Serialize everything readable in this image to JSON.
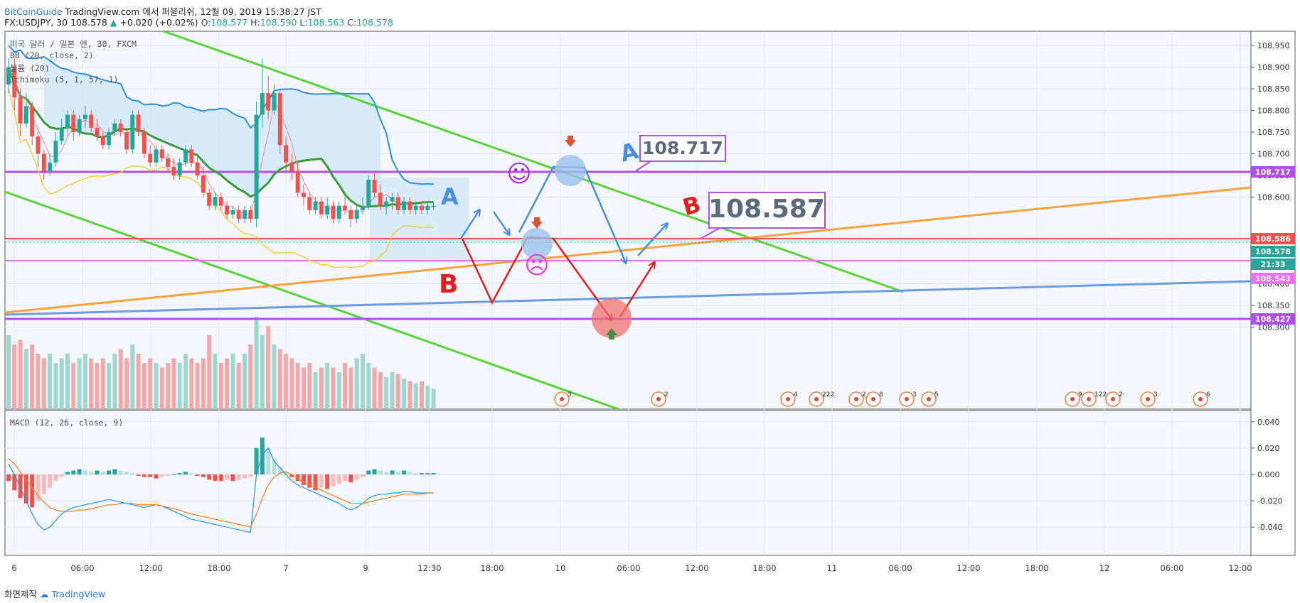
{
  "header": {
    "brand": "BitCoinGuide",
    "source_text": "TradingView.com 에서 퍼블리쉬, 12월 09, 2019 15:38:27 JST",
    "symbol": "FX:USDJPY, 30",
    "price": "108.578",
    "change": "+0.020 (+0.02%)",
    "o_label": "O:",
    "o": "108.577",
    "h_label": "H:",
    "h": "108.590",
    "l_label": "L:",
    "l": "108.563",
    "c_label": "C:",
    "c": "108.578"
  },
  "legend": {
    "title": "미국 달러 / 일본 엔, 30, FXCM",
    "bb": "BB (20, close, 2)",
    "volume": "볼륨 (20)",
    "ichimoku": "Ichimoku (5, 1, 57, 1)",
    "macd": "MACD (12, 26, close, 9)"
  },
  "footer": {
    "text": "화면제작",
    "tv": "TradingView"
  },
  "colors": {
    "up": "#26a69a",
    "down": "#ef5350",
    "channel": "#58d43a",
    "orange_trend": "#f7a23c",
    "blue_trend": "#6b9be0",
    "level_purple": "#b14fe8",
    "level_red": "#f05050",
    "level_pink": "#f06ef0",
    "bb_band": "#2f8fe0",
    "ichimoku_green": "#3d9a3d",
    "scenario_a": "#4a8ee0",
    "scenario_b": "#e02020"
  },
  "chart_data": {
    "type": "candlestick",
    "symbol": "USDJPY",
    "timeframe": "30",
    "y_axis": {
      "ticks": [
        "108.950",
        "108.900",
        "108.850",
        "108.800",
        "108.750",
        "108.700",
        "108.650",
        "108.600",
        "108.500",
        "108.450",
        "108.400",
        "108.350",
        "108.300"
      ],
      "range": [
        108.25,
        109.0
      ]
    },
    "macd_axis": {
      "ticks": [
        "0.040",
        "0.020",
        "0.000",
        "-0.020",
        "-0.040"
      ],
      "range": [
        -0.05,
        0.04
      ]
    },
    "x_axis": {
      "ticks": [
        "6",
        "06:00",
        "12:00",
        "18:00",
        "7",
        "9",
        "12:30",
        "18:00",
        "10",
        "06:00",
        "12:00",
        "18:00",
        "11",
        "06:00",
        "12:00",
        "18:00",
        "12",
        "06:00",
        "12:00"
      ]
    },
    "price_labels": [
      {
        "value": "108.717",
        "color": "#b14fe8"
      },
      {
        "value": "108.586",
        "color": "#f05050"
      },
      {
        "value": "108.578",
        "color": "#26a69a"
      },
      {
        "value": "21:33",
        "color": "#26a69a"
      },
      {
        "value": "108.543",
        "color": "#f06ef0"
      },
      {
        "value": "108.427",
        "color": "#b14fe8"
      }
    ],
    "levels": {
      "purple_high": 108.717,
      "red": 108.586,
      "pink": 108.543,
      "purple_low": 108.427
    },
    "annotations": {
      "a_label": "A",
      "b_label": "B",
      "target_a": "108.717",
      "target_b": "108.587",
      "smile": "☺",
      "frown": "☹"
    },
    "event_markers": [
      "3",
      "2",
      "4",
      "222",
      "2",
      "8",
      "3",
      "5",
      "9",
      "122",
      "2",
      "3",
      "6"
    ],
    "candles": [
      [
        108.86,
        108.92,
        108.84,
        108.9
      ],
      [
        108.9,
        108.92,
        108.8,
        108.83
      ],
      [
        108.83,
        108.85,
        108.74,
        108.77
      ],
      [
        108.77,
        108.84,
        108.76,
        108.81
      ],
      [
        108.81,
        108.82,
        108.72,
        108.74
      ],
      [
        108.74,
        108.76,
        108.67,
        108.7
      ],
      [
        108.7,
        108.71,
        108.64,
        108.66
      ],
      [
        108.66,
        108.7,
        108.65,
        108.68
      ],
      [
        108.68,
        108.75,
        108.67,
        108.73
      ],
      [
        108.73,
        108.78,
        108.72,
        108.76
      ],
      [
        108.76,
        108.8,
        108.74,
        108.79
      ],
      [
        108.79,
        108.8,
        108.73,
        108.75
      ],
      [
        108.75,
        108.79,
        108.74,
        108.78
      ],
      [
        108.78,
        108.81,
        108.76,
        108.79
      ],
      [
        108.79,
        108.8,
        108.75,
        108.76
      ],
      [
        108.76,
        108.78,
        108.73,
        108.74
      ],
      [
        108.74,
        108.75,
        108.71,
        108.72
      ],
      [
        108.72,
        108.76,
        108.71,
        108.75
      ],
      [
        108.75,
        108.78,
        108.74,
        108.77
      ],
      [
        108.77,
        108.78,
        108.74,
        108.75
      ],
      [
        108.75,
        108.76,
        108.7,
        108.71
      ],
      [
        108.71,
        108.8,
        108.7,
        108.79
      ],
      [
        108.79,
        108.8,
        108.74,
        108.75
      ],
      [
        108.75,
        108.76,
        108.69,
        108.7
      ],
      [
        108.7,
        108.72,
        108.67,
        108.68
      ],
      [
        108.68,
        108.72,
        108.67,
        108.71
      ],
      [
        108.71,
        108.72,
        108.68,
        108.69
      ],
      [
        108.69,
        108.7,
        108.66,
        108.67
      ],
      [
        108.67,
        108.69,
        108.64,
        108.65
      ],
      [
        108.65,
        108.69,
        108.64,
        108.68
      ],
      [
        108.68,
        108.72,
        108.67,
        108.71
      ],
      [
        108.71,
        108.72,
        108.67,
        108.68
      ],
      [
        108.68,
        108.7,
        108.64,
        108.65
      ],
      [
        108.65,
        108.67,
        108.6,
        108.61
      ],
      [
        108.61,
        108.62,
        108.57,
        108.58
      ],
      [
        108.58,
        108.61,
        108.57,
        108.6
      ],
      [
        108.6,
        108.61,
        108.57,
        108.58
      ],
      [
        108.58,
        108.59,
        108.55,
        108.56
      ],
      [
        108.56,
        108.58,
        108.55,
        108.57
      ],
      [
        108.57,
        108.58,
        108.54,
        108.55
      ],
      [
        108.55,
        108.58,
        108.54,
        108.57
      ],
      [
        108.57,
        108.58,
        108.54,
        108.55
      ],
      [
        108.55,
        108.82,
        108.53,
        108.79
      ],
      [
        108.79,
        108.92,
        108.76,
        108.84
      ],
      [
        108.84,
        108.88,
        108.78,
        108.8
      ],
      [
        108.8,
        108.86,
        108.79,
        108.84
      ],
      [
        108.84,
        108.85,
        108.7,
        108.72
      ],
      [
        108.72,
        108.74,
        108.66,
        108.68
      ],
      [
        108.68,
        108.7,
        108.64,
        108.66
      ],
      [
        108.66,
        108.68,
        108.6,
        108.61
      ],
      [
        108.61,
        108.63,
        108.58,
        108.6
      ],
      [
        108.6,
        108.61,
        108.56,
        108.57
      ],
      [
        108.57,
        108.6,
        108.56,
        108.59
      ],
      [
        108.59,
        108.6,
        108.55,
        108.56
      ],
      [
        108.56,
        108.6,
        108.55,
        108.58
      ],
      [
        108.58,
        108.59,
        108.54,
        108.55
      ],
      [
        108.55,
        108.59,
        108.54,
        108.58
      ],
      [
        108.58,
        108.6,
        108.56,
        108.57
      ],
      [
        108.57,
        108.58,
        108.53,
        108.55
      ],
      [
        108.55,
        108.58,
        108.54,
        108.57
      ],
      [
        108.57,
        108.6,
        108.56,
        108.58
      ],
      [
        108.58,
        108.65,
        108.57,
        108.64
      ],
      [
        108.64,
        108.66,
        108.6,
        108.61
      ],
      [
        108.61,
        108.63,
        108.57,
        108.58
      ],
      [
        108.58,
        108.6,
        108.56,
        108.59
      ],
      [
        108.59,
        108.61,
        108.57,
        108.6
      ],
      [
        108.6,
        108.61,
        108.56,
        108.57
      ],
      [
        108.57,
        108.6,
        108.56,
        108.59
      ],
      [
        108.59,
        108.6,
        108.56,
        108.57
      ],
      [
        108.57,
        108.59,
        108.56,
        108.58
      ],
      [
        108.58,
        108.59,
        108.56,
        108.57
      ],
      [
        108.57,
        108.59,
        108.56,
        108.58
      ],
      [
        108.58,
        108.59,
        108.57,
        108.58
      ]
    ],
    "volume": [
      0.8,
      0.7,
      0.75,
      0.65,
      0.7,
      0.6,
      0.55,
      0.6,
      0.5,
      0.55,
      0.6,
      0.5,
      0.55,
      0.6,
      0.55,
      0.5,
      0.55,
      0.5,
      0.6,
      0.65,
      0.55,
      0.7,
      0.6,
      0.5,
      0.55,
      0.5,
      0.45,
      0.5,
      0.55,
      0.5,
      0.6,
      0.55,
      0.5,
      0.55,
      0.8,
      0.6,
      0.5,
      0.55,
      0.6,
      0.5,
      0.6,
      0.7,
      1.0,
      0.8,
      0.9,
      0.7,
      0.65,
      0.6,
      0.55,
      0.5,
      0.45,
      0.5,
      0.4,
      0.45,
      0.5,
      0.45,
      0.4,
      0.5,
      0.45,
      0.55,
      0.6,
      0.5,
      0.45,
      0.4,
      0.35,
      0.4,
      0.38,
      0.33,
      0.3,
      0.28,
      0.3,
      0.25,
      0.22
    ],
    "macd_hist": [
      -0.005,
      -0.012,
      -0.018,
      -0.022,
      -0.025,
      -0.02,
      -0.015,
      -0.01,
      -0.005,
      -0.002,
      0.002,
      0.003,
      0.004,
      0.003,
      0.002,
      0.003,
      0.002,
      0.003,
      0.004,
      0.003,
      0.002,
      0.001,
      -0.001,
      -0.002,
      -0.002,
      -0.003,
      -0.002,
      -0.001,
      0.0,
      0.001,
      0.002,
      0.001,
      -0.001,
      -0.002,
      -0.004,
      -0.005,
      -0.005,
      -0.004,
      -0.005,
      -0.004,
      -0.003,
      -0.002,
      0.02,
      0.028,
      0.02,
      0.012,
      0.006,
      0.002,
      -0.002,
      -0.005,
      -0.008,
      -0.01,
      -0.012,
      -0.01,
      -0.011,
      -0.009,
      -0.007,
      -0.005,
      -0.006,
      -0.004,
      -0.002,
      0.003,
      0.004,
      0.003,
      0.002,
      0.003,
      0.002,
      0.003,
      0.002,
      0.001,
      0.001,
      0.001,
      0.001
    ],
    "macd_line": [
      0.008,
      0.0,
      -0.01,
      -0.02,
      -0.03,
      -0.038,
      -0.042,
      -0.04,
      -0.035,
      -0.03,
      -0.027,
      -0.025,
      -0.024,
      -0.023,
      -0.022,
      -0.021,
      -0.02,
      -0.019,
      -0.02,
      -0.021,
      -0.022,
      -0.023,
      -0.024,
      -0.025,
      -0.024,
      -0.023,
      -0.024,
      -0.026,
      -0.028,
      -0.03,
      -0.032,
      -0.034,
      -0.035,
      -0.036,
      -0.037,
      -0.038,
      -0.039,
      -0.04,
      -0.041,
      -0.042,
      -0.043,
      -0.044,
      0.0,
      0.015,
      0.02,
      0.01,
      0.005,
      0.0,
      -0.005,
      -0.008,
      -0.01,
      -0.012,
      -0.014,
      -0.016,
      -0.018,
      -0.02,
      -0.022,
      -0.025,
      -0.027,
      -0.025,
      -0.022,
      -0.018,
      -0.016,
      -0.015,
      -0.015,
      -0.014,
      -0.014,
      -0.013,
      -0.013,
      -0.014,
      -0.014,
      -0.014,
      -0.014
    ],
    "signal_line": [
      0.012,
      0.008,
      0.002,
      -0.004,
      -0.01,
      -0.016,
      -0.021,
      -0.025,
      -0.027,
      -0.028,
      -0.028,
      -0.028,
      -0.027,
      -0.027,
      -0.026,
      -0.025,
      -0.024,
      -0.023,
      -0.023,
      -0.022,
      -0.022,
      -0.022,
      -0.023,
      -0.023,
      -0.023,
      -0.023,
      -0.024,
      -0.025,
      -0.026,
      -0.027,
      -0.029,
      -0.03,
      -0.031,
      -0.032,
      -0.033,
      -0.034,
      -0.035,
      -0.036,
      -0.037,
      -0.038,
      -0.039,
      -0.04,
      -0.03,
      -0.018,
      -0.008,
      -0.002,
      0.001,
      0.002,
      0.0,
      -0.003,
      -0.006,
      -0.008,
      -0.01,
      -0.012,
      -0.014,
      -0.016,
      -0.018,
      -0.02,
      -0.022,
      -0.022,
      -0.022,
      -0.021,
      -0.02,
      -0.019,
      -0.018,
      -0.017,
      -0.016,
      -0.015,
      -0.015,
      -0.015,
      -0.015,
      -0.014,
      -0.014
    ]
  }
}
